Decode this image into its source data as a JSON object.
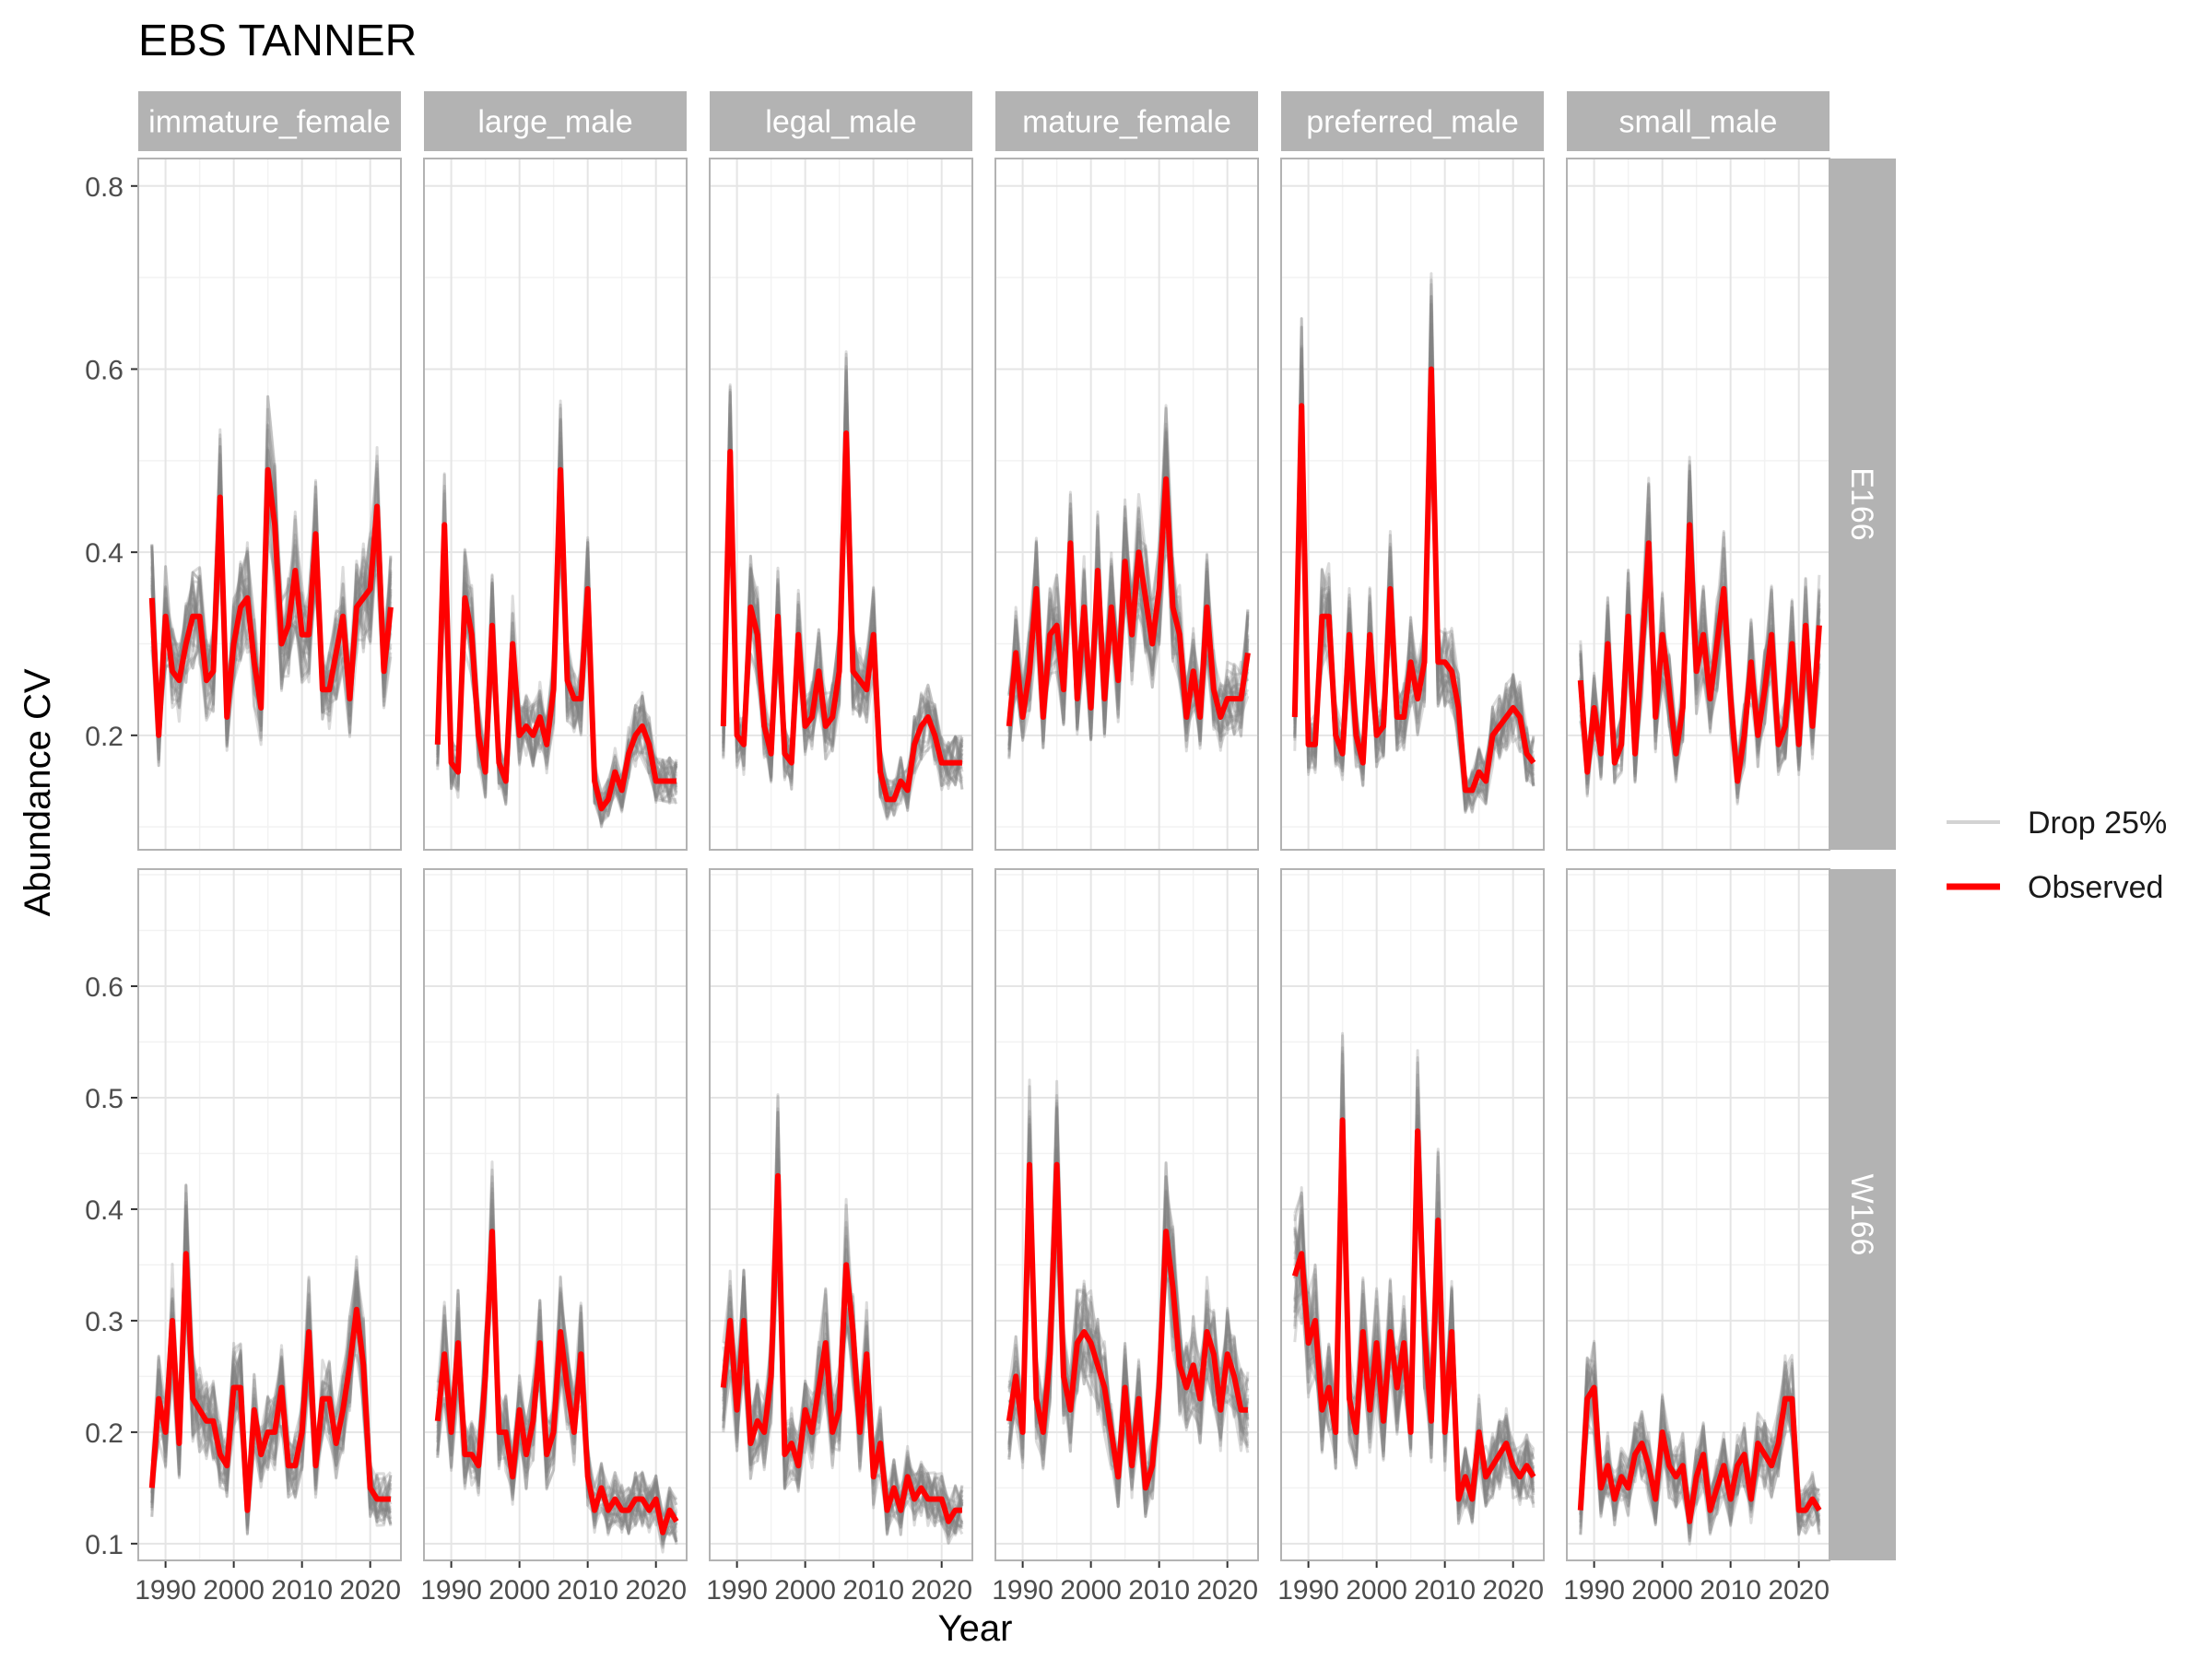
{
  "chart_data": {
    "type": "line",
    "title": "EBS TANNER",
    "xlabel": "Year",
    "ylabel": "Abundance CV",
    "facet_columns": [
      "immature_female",
      "large_male",
      "legal_male",
      "mature_female",
      "preferred_male",
      "small_male"
    ],
    "facet_rows": [
      "E166",
      "W166"
    ],
    "x_ticks": [
      "1990",
      "2000",
      "2010",
      "2020"
    ],
    "y_ticks_rows": [
      [
        "0.2",
        "0.4",
        "0.6",
        "0.8"
      ],
      [
        "0.1",
        "0.2",
        "0.3",
        "0.4",
        "0.5",
        "0.6"
      ]
    ],
    "ylim_rows": [
      [
        0.075,
        0.83
      ],
      [
        0.085,
        0.705
      ]
    ],
    "xlim": [
      1986,
      2024.5
    ],
    "legend": {
      "position": "right",
      "items": [
        {
          "label": "Drop 25%",
          "color": "#d3d3d3"
        },
        {
          "label": "Observed",
          "color": "#ff0000"
        }
      ]
    },
    "colors": {
      "observed": "#ff0000",
      "drop": "#808080",
      "strip": "#b3b3b3",
      "grid": "#ebebeb"
    },
    "observed_note": "Observed survey CV series; Drop 25% series are many resampled replicates drawn around these values.",
    "panels": [
      {
        "row": "E166",
        "col": "immature_female",
        "x": [
          1988,
          1989,
          1990,
          1991,
          1992,
          1993,
          1994,
          1995,
          1996,
          1997,
          1998,
          1999,
          2000,
          2001,
          2002,
          2003,
          2004,
          2005,
          2006,
          2007,
          2008,
          2009,
          2010,
          2011,
          2012,
          2013,
          2014,
          2015,
          2016,
          2017,
          2018,
          2019,
          2020,
          2021,
          2022,
          2023
        ],
        "y": [
          0.35,
          0.2,
          0.33,
          0.27,
          0.26,
          0.3,
          0.33,
          0.33,
          0.26,
          0.27,
          0.46,
          0.22,
          0.3,
          0.34,
          0.35,
          0.28,
          0.23,
          0.49,
          0.43,
          0.3,
          0.32,
          0.38,
          0.31,
          0.31,
          0.42,
          0.25,
          0.25,
          0.29,
          0.33,
          0.24,
          0.34,
          0.35,
          0.36,
          0.45,
          0.27,
          0.34
        ]
      },
      {
        "row": "E166",
        "col": "large_male",
        "x": [
          1988,
          1989,
          1990,
          1991,
          1992,
          1993,
          1994,
          1995,
          1996,
          1997,
          1998,
          1999,
          2000,
          2001,
          2002,
          2003,
          2004,
          2005,
          2006,
          2007,
          2008,
          2009,
          2010,
          2011,
          2012,
          2013,
          2014,
          2015,
          2016,
          2017,
          2018,
          2019,
          2020,
          2021,
          2022,
          2023
        ],
        "y": [
          0.19,
          0.43,
          0.17,
          0.16,
          0.35,
          0.31,
          0.2,
          0.16,
          0.32,
          0.17,
          0.15,
          0.3,
          0.2,
          0.21,
          0.2,
          0.22,
          0.19,
          0.25,
          0.49,
          0.26,
          0.24,
          0.24,
          0.36,
          0.15,
          0.12,
          0.13,
          0.16,
          0.14,
          0.18,
          0.2,
          0.21,
          0.19,
          0.15,
          0.15,
          0.15,
          0.15
        ]
      },
      {
        "row": "E166",
        "col": "legal_male",
        "x": [
          1988,
          1989,
          1990,
          1991,
          1992,
          1993,
          1994,
          1995,
          1996,
          1997,
          1998,
          1999,
          2000,
          2001,
          2002,
          2003,
          2004,
          2005,
          2006,
          2007,
          2008,
          2009,
          2010,
          2011,
          2012,
          2013,
          2014,
          2015,
          2016,
          2017,
          2018,
          2019,
          2020,
          2021,
          2022,
          2023
        ],
        "y": [
          0.21,
          0.51,
          0.2,
          0.19,
          0.34,
          0.31,
          0.21,
          0.18,
          0.33,
          0.18,
          0.17,
          0.31,
          0.21,
          0.22,
          0.27,
          0.21,
          0.22,
          0.27,
          0.53,
          0.27,
          0.26,
          0.25,
          0.31,
          0.16,
          0.13,
          0.13,
          0.15,
          0.14,
          0.19,
          0.21,
          0.22,
          0.2,
          0.17,
          0.17,
          0.17,
          0.17
        ]
      },
      {
        "row": "E166",
        "col": "mature_female",
        "x": [
          1988,
          1989,
          1990,
          1991,
          1992,
          1993,
          1994,
          1995,
          1996,
          1997,
          1998,
          1999,
          2000,
          2001,
          2002,
          2003,
          2004,
          2005,
          2006,
          2007,
          2008,
          2009,
          2010,
          2011,
          2012,
          2013,
          2014,
          2015,
          2016,
          2017,
          2018,
          2019,
          2020,
          2021,
          2022,
          2023
        ],
        "y": [
          0.21,
          0.29,
          0.22,
          0.27,
          0.36,
          0.22,
          0.31,
          0.32,
          0.25,
          0.41,
          0.24,
          0.34,
          0.23,
          0.38,
          0.24,
          0.34,
          0.26,
          0.39,
          0.31,
          0.4,
          0.35,
          0.3,
          0.36,
          0.48,
          0.34,
          0.31,
          0.22,
          0.27,
          0.22,
          0.34,
          0.25,
          0.22,
          0.24,
          0.24,
          0.24,
          0.29
        ]
      },
      {
        "row": "E166",
        "col": "preferred_male",
        "x": [
          1988,
          1989,
          1990,
          1991,
          1992,
          1993,
          1994,
          1995,
          1996,
          1997,
          1998,
          1999,
          2000,
          2001,
          2002,
          2003,
          2004,
          2005,
          2006,
          2007,
          2008,
          2009,
          2010,
          2011,
          2012,
          2013,
          2014,
          2015,
          2016,
          2017,
          2018,
          2019,
          2020,
          2021,
          2022,
          2023
        ],
        "y": [
          0.22,
          0.56,
          0.19,
          0.19,
          0.33,
          0.33,
          0.2,
          0.18,
          0.31,
          0.2,
          0.17,
          0.31,
          0.2,
          0.21,
          0.36,
          0.22,
          0.22,
          0.28,
          0.24,
          0.28,
          0.6,
          0.28,
          0.28,
          0.27,
          0.23,
          0.14,
          0.14,
          0.16,
          0.15,
          0.2,
          0.21,
          0.22,
          0.23,
          0.22,
          0.18,
          0.17
        ]
      },
      {
        "row": "E166",
        "col": "small_male",
        "x": [
          1988,
          1989,
          1990,
          1991,
          1992,
          1993,
          1994,
          1995,
          1996,
          1997,
          1998,
          1999,
          2000,
          2001,
          2002,
          2003,
          2004,
          2005,
          2006,
          2007,
          2008,
          2009,
          2010,
          2011,
          2012,
          2013,
          2014,
          2015,
          2016,
          2017,
          2018,
          2019,
          2020,
          2021,
          2022,
          2023
        ],
        "y": [
          0.26,
          0.16,
          0.23,
          0.18,
          0.3,
          0.17,
          0.19,
          0.33,
          0.18,
          0.29,
          0.41,
          0.22,
          0.31,
          0.25,
          0.18,
          0.23,
          0.43,
          0.27,
          0.31,
          0.24,
          0.3,
          0.36,
          0.24,
          0.15,
          0.2,
          0.28,
          0.2,
          0.25,
          0.31,
          0.19,
          0.21,
          0.3,
          0.19,
          0.32,
          0.21,
          0.32
        ]
      },
      {
        "row": "W166",
        "col": "immature_female",
        "x": [
          1988,
          1989,
          1990,
          1991,
          1992,
          1993,
          1994,
          1995,
          1996,
          1997,
          1998,
          1999,
          2000,
          2001,
          2002,
          2003,
          2004,
          2005,
          2006,
          2007,
          2008,
          2009,
          2010,
          2011,
          2012,
          2013,
          2014,
          2015,
          2016,
          2017,
          2018,
          2019,
          2020,
          2021,
          2022,
          2023
        ],
        "y": [
          0.15,
          0.23,
          0.2,
          0.3,
          0.19,
          0.36,
          0.23,
          0.22,
          0.21,
          0.21,
          0.18,
          0.17,
          0.24,
          0.24,
          0.13,
          0.22,
          0.18,
          0.2,
          0.2,
          0.24,
          0.17,
          0.17,
          0.2,
          0.29,
          0.17,
          0.23,
          0.23,
          0.19,
          0.22,
          0.26,
          0.31,
          0.26,
          0.15,
          0.14,
          0.14,
          0.14
        ]
      },
      {
        "row": "W166",
        "col": "large_male",
        "x": [
          1988,
          1989,
          1990,
          1991,
          1992,
          1993,
          1994,
          1995,
          1996,
          1997,
          1998,
          1999,
          2000,
          2001,
          2002,
          2003,
          2004,
          2005,
          2006,
          2007,
          2008,
          2009,
          2010,
          2011,
          2012,
          2013,
          2014,
          2015,
          2016,
          2017,
          2018,
          2019,
          2020,
          2021,
          2022,
          2023
        ],
        "y": [
          0.21,
          0.27,
          0.2,
          0.28,
          0.18,
          0.18,
          0.17,
          0.25,
          0.38,
          0.2,
          0.2,
          0.16,
          0.22,
          0.18,
          0.21,
          0.28,
          0.18,
          0.2,
          0.29,
          0.24,
          0.2,
          0.27,
          0.16,
          0.13,
          0.15,
          0.13,
          0.14,
          0.13,
          0.13,
          0.14,
          0.14,
          0.13,
          0.14,
          0.11,
          0.13,
          0.12
        ]
      },
      {
        "row": "W166",
        "col": "legal_male",
        "x": [
          1988,
          1989,
          1990,
          1991,
          1992,
          1993,
          1994,
          1995,
          1996,
          1997,
          1998,
          1999,
          2000,
          2001,
          2002,
          2003,
          2004,
          2005,
          2006,
          2007,
          2008,
          2009,
          2010,
          2011,
          2012,
          2013,
          2014,
          2015,
          2016,
          2017,
          2018,
          2019,
          2020,
          2021,
          2022,
          2023
        ],
        "y": [
          0.24,
          0.3,
          0.22,
          0.3,
          0.19,
          0.21,
          0.2,
          0.25,
          0.43,
          0.18,
          0.19,
          0.17,
          0.22,
          0.2,
          0.24,
          0.28,
          0.2,
          0.22,
          0.35,
          0.29,
          0.2,
          0.27,
          0.16,
          0.19,
          0.13,
          0.15,
          0.13,
          0.16,
          0.14,
          0.15,
          0.14,
          0.14,
          0.14,
          0.12,
          0.13,
          0.13
        ]
      },
      {
        "row": "W166",
        "col": "mature_female",
        "x": [
          1988,
          1989,
          1990,
          1991,
          1992,
          1993,
          1994,
          1995,
          1996,
          1997,
          1998,
          1999,
          2000,
          2001,
          2002,
          2003,
          2004,
          2005,
          2006,
          2007,
          2008,
          2009,
          2010,
          2011,
          2012,
          2013,
          2014,
          2015,
          2016,
          2017,
          2018,
          2019,
          2020,
          2021,
          2022,
          2023
        ],
        "y": [
          0.21,
          0.25,
          0.2,
          0.44,
          0.23,
          0.2,
          0.27,
          0.44,
          0.25,
          0.22,
          0.28,
          0.29,
          0.28,
          0.26,
          0.24,
          0.2,
          0.16,
          0.24,
          0.17,
          0.23,
          0.15,
          0.17,
          0.24,
          0.38,
          0.33,
          0.26,
          0.24,
          0.26,
          0.23,
          0.29,
          0.27,
          0.22,
          0.27,
          0.25,
          0.22,
          0.22
        ]
      },
      {
        "row": "W166",
        "col": "preferred_male",
        "x": [
          1988,
          1989,
          1990,
          1991,
          1992,
          1993,
          1994,
          1995,
          1996,
          1997,
          1998,
          1999,
          2000,
          2001,
          2002,
          2003,
          2004,
          2005,
          2006,
          2007,
          2008,
          2009,
          2010,
          2011,
          2012,
          2013,
          2014,
          2015,
          2016,
          2017,
          2018,
          2019,
          2020,
          2021,
          2022,
          2023
        ],
        "y": [
          0.34,
          0.36,
          0.28,
          0.3,
          0.22,
          0.24,
          0.2,
          0.48,
          0.23,
          0.2,
          0.29,
          0.22,
          0.28,
          0.21,
          0.29,
          0.24,
          0.28,
          0.2,
          0.47,
          0.29,
          0.21,
          0.39,
          0.2,
          0.29,
          0.14,
          0.16,
          0.14,
          0.2,
          0.16,
          0.17,
          0.18,
          0.19,
          0.17,
          0.16,
          0.17,
          0.16
        ]
      },
      {
        "row": "W166",
        "col": "small_male",
        "x": [
          1988,
          1989,
          1990,
          1991,
          1992,
          1993,
          1994,
          1995,
          1996,
          1997,
          1998,
          1999,
          2000,
          2001,
          2002,
          2003,
          2004,
          2005,
          2006,
          2007,
          2008,
          2009,
          2010,
          2011,
          2012,
          2013,
          2014,
          2015,
          2016,
          2017,
          2018,
          2019,
          2020,
          2021,
          2022,
          2023
        ],
        "y": [
          0.13,
          0.23,
          0.24,
          0.15,
          0.17,
          0.14,
          0.16,
          0.15,
          0.18,
          0.19,
          0.17,
          0.14,
          0.2,
          0.17,
          0.16,
          0.17,
          0.12,
          0.16,
          0.18,
          0.13,
          0.15,
          0.17,
          0.14,
          0.17,
          0.18,
          0.14,
          0.19,
          0.18,
          0.17,
          0.19,
          0.23,
          0.23,
          0.13,
          0.13,
          0.14,
          0.13
        ]
      }
    ]
  }
}
